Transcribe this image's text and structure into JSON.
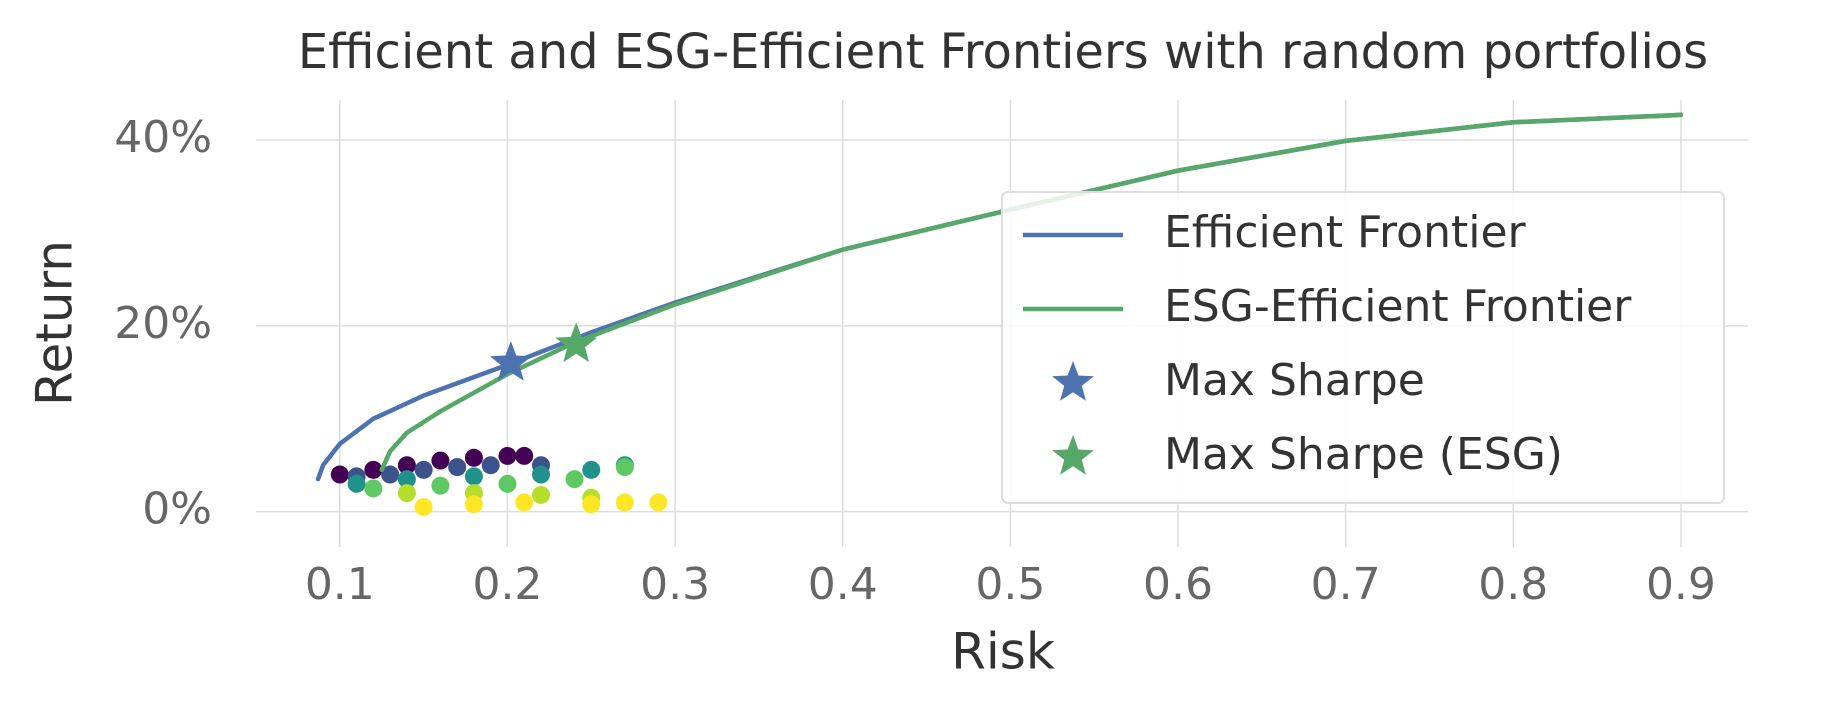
{
  "chart_data": {
    "type": "line",
    "title": "Efficient and ESG-Efficient Frontiers with random portfolios",
    "x_label": "Risk",
    "y_label": "Return",
    "xlim": [
      0.05,
      0.94
    ],
    "ylim": [
      -3.8,
      44.3
    ],
    "xticks": [
      0.1,
      0.2,
      0.3,
      0.4,
      0.5,
      0.6,
      0.7,
      0.8,
      0.9
    ],
    "yticks": [
      {
        "value": 0,
        "label": "0%"
      },
      {
        "value": 20,
        "label": "20%"
      },
      {
        "value": 40,
        "label": "40%"
      }
    ],
    "grid": true,
    "legend": "right",
    "points": {
      "x": [
        0.1,
        0.12,
        0.14,
        0.16,
        0.18,
        0.2,
        0.21,
        0.11,
        0.13,
        0.15,
        0.17,
        0.19,
        0.22,
        0.11,
        0.14,
        0.18,
        0.22,
        0.25,
        0.27,
        0.12,
        0.16,
        0.2,
        0.24,
        0.27,
        0.14,
        0.18,
        0.22,
        0.25,
        0.15,
        0.18,
        0.21,
        0.25,
        0.27,
        0.29
      ],
      "values": [
        4,
        4.5,
        5,
        5.5,
        5.8,
        6,
        6,
        3.8,
        4,
        4.5,
        4.8,
        5,
        5,
        3,
        3.5,
        3.8,
        4,
        4.5,
        5,
        2.5,
        2.8,
        3,
        3.5,
        4.8,
        2,
        2,
        1.8,
        1.5,
        0.5,
        0.8,
        1,
        0.8,
        1,
        1
      ],
      "colors": [
        "#440154",
        "#440154",
        "#440154",
        "#440154",
        "#440154",
        "#440154",
        "#440154",
        "#3b528b",
        "#3b528b",
        "#3b528b",
        "#3b528b",
        "#3b528b",
        "#3b528b",
        "#21918c",
        "#21918c",
        "#21918c",
        "#21918c",
        "#21918c",
        "#21918c",
        "#5ec962",
        "#5ec962",
        "#5ec962",
        "#5ec962",
        "#5ec962",
        "#b5de2b",
        "#b5de2b",
        "#b5de2b",
        "#b5de2b",
        "#fde725",
        "#fde725",
        "#fde725",
        "#fde725",
        "#fde725",
        "#fde725"
      ]
    },
    "series": [
      {
        "name": "Efficient Frontier",
        "type": "line",
        "color": "#4c72b0",
        "x": [
          0.087,
          0.09,
          0.1,
          0.12,
          0.15,
          0.2,
          0.25,
          0.3,
          0.4,
          0.5,
          0.6,
          0.7,
          0.8,
          0.9
        ],
        "values": [
          3.5,
          5,
          7.3,
          10,
          12.5,
          15.8,
          19.3,
          22.5,
          28.2,
          32.5,
          36.7,
          39.9,
          41.9,
          42.7
        ]
      },
      {
        "name": "ESG-Efficient Frontier",
        "type": "line",
        "color": "#55a868",
        "x": [
          0.125,
          0.13,
          0.14,
          0.16,
          0.2,
          0.24,
          0.3,
          0.4,
          0.5,
          0.6,
          0.7,
          0.8,
          0.9
        ],
        "values": [
          4.5,
          6.5,
          8.5,
          10.8,
          14.8,
          18.2,
          22.3,
          28.2,
          32.5,
          36.7,
          39.9,
          41.9,
          42.7
        ]
      },
      {
        "name": "Max Sharpe",
        "type": "scatter",
        "marker": "star",
        "color": "#4c72b0",
        "x": [
          0.202
        ],
        "values": [
          16.0
        ]
      },
      {
        "name": "Max Sharpe (ESG)",
        "type": "scatter",
        "marker": "star",
        "color": "#55a868",
        "x": [
          0.241
        ],
        "values": [
          18.0
        ]
      }
    ]
  }
}
